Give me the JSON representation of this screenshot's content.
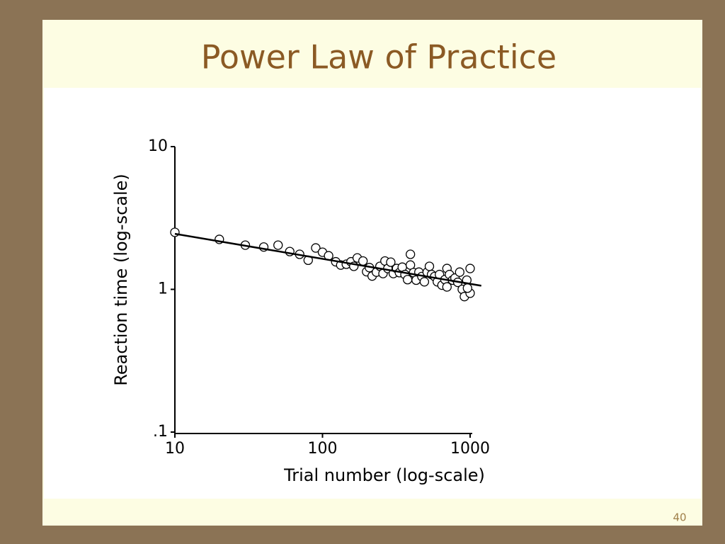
{
  "chart_data": {
    "type": "scatter",
    "title": "Power Law of Practice",
    "xlabel": "Trial number (log-scale)",
    "ylabel": "Reaction time (log-scale)",
    "page_number": "40",
    "xscale": "log",
    "yscale": "log",
    "xlim": [
      10,
      1000
    ],
    "ylim": [
      0.1,
      10
    ],
    "xticks": [
      10,
      100,
      1000
    ],
    "yticks": [
      {
        "value": 0.1,
        "label": ".1"
      },
      1,
      10
    ],
    "marker_color": "#000000",
    "x": [
      10,
      20,
      30,
      40,
      50,
      60,
      70,
      80,
      90,
      100,
      110,
      123,
      133,
      145,
      156,
      163,
      172,
      188,
      199,
      208,
      217,
      232,
      245,
      257,
      265,
      277,
      290,
      302,
      318,
      332,
      347,
      362,
      377,
      394,
      394,
      414,
      431,
      450,
      471,
      490,
      512,
      530,
      548,
      575,
      600,
      620,
      645,
      675,
      697,
      697,
      725,
      760,
      790,
      825,
      850,
      885,
      915,
      950,
      1000,
      1000,
      960
    ],
    "y": [
      2.51,
      2.24,
      2.04,
      1.98,
      2.04,
      1.84,
      1.76,
      1.6,
      1.95,
      1.82,
      1.72,
      1.56,
      1.48,
      1.5,
      1.56,
      1.45,
      1.66,
      1.58,
      1.33,
      1.42,
      1.24,
      1.32,
      1.45,
      1.29,
      1.58,
      1.4,
      1.55,
      1.29,
      1.4,
      1.31,
      1.43,
      1.27,
      1.17,
      1.48,
      1.76,
      1.31,
      1.16,
      1.32,
      1.23,
      1.13,
      1.32,
      1.45,
      1.27,
      1.23,
      1.13,
      1.27,
      1.07,
      1.17,
      1.4,
      1.04,
      1.27,
      1.16,
      1.2,
      1.12,
      1.32,
      1.0,
      0.89,
      1.16,
      1.4,
      0.94,
      1.02
    ],
    "fit": {
      "x": [
        10,
        1190
      ],
      "y": [
        2.45,
        1.06
      ],
      "color": "#000000"
    }
  }
}
